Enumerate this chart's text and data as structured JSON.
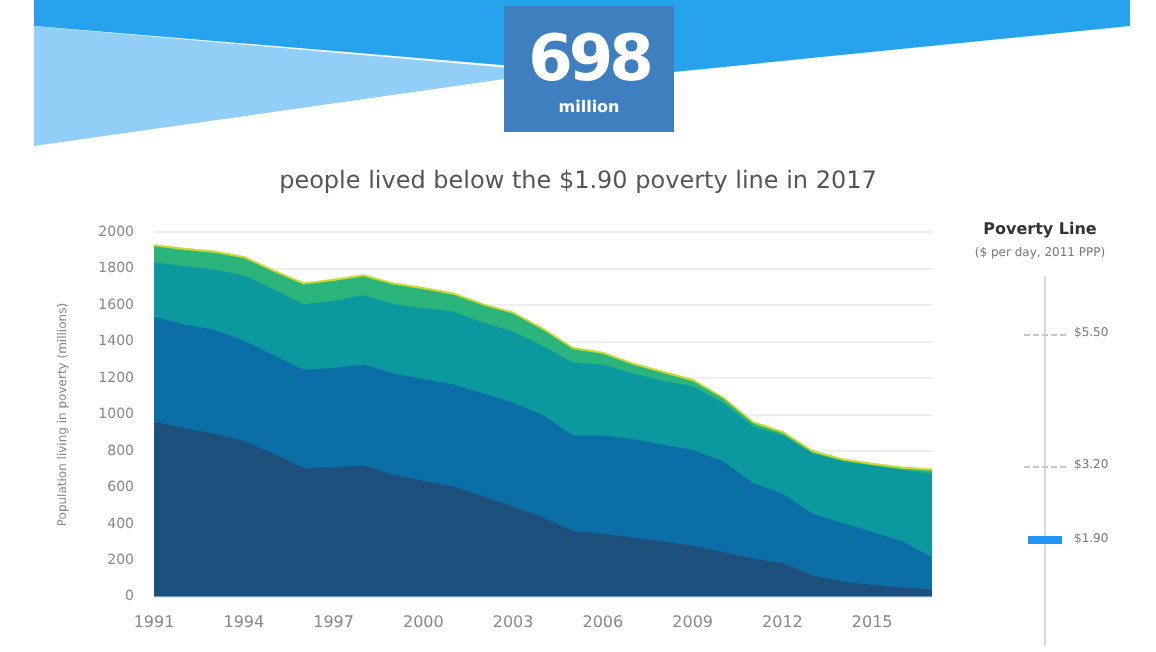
{
  "chart_data": {
    "type": "area",
    "title": "people lived below the $1.90 poverty line in 2017",
    "ylabel": "Population living in poverty (millions)",
    "annotations": [
      "698",
      "million",
      "Poverty Line",
      "($ per day, 2011 PPP)",
      "$5.50",
      "$3.20",
      "$1.90"
    ],
    "x": [
      1991,
      1992,
      1993,
      1994,
      1995,
      1996,
      1997,
      1998,
      1999,
      2000,
      2001,
      2002,
      2003,
      2004,
      2005,
      2006,
      2007,
      2008,
      2009,
      2010,
      2011,
      2012,
      2013,
      2014,
      2015,
      2016,
      2017
    ],
    "stacked": true,
    "series": [
      {
        "color": "#1d4f7c",
        "values": [
          955,
          920,
          890,
          850,
          780,
          700,
          705,
          715,
          665,
          630,
          600,
          545,
          490,
          430,
          355,
          340,
          320,
          300,
          275,
          240,
          205,
          180,
          110,
          80,
          60,
          45,
          35
        ]
      },
      {
        "color": "#0b6ea6",
        "values": [
          575,
          570,
          570,
          550,
          540,
          540,
          545,
          555,
          555,
          560,
          560,
          565,
          570,
          560,
          525,
          540,
          540,
          530,
          525,
          500,
          415,
          380,
          340,
          320,
          290,
          255,
          175
        ]
      },
      {
        "color": "#0b999f",
        "values": [
          300,
          320,
          330,
          360,
          360,
          360,
          370,
          380,
          380,
          390,
          400,
          390,
          390,
          380,
          400,
          390,
          360,
          350,
          350,
          320,
          310,
          320,
          330,
          340,
          365,
          390,
          460
        ]
      },
      {
        "color": "#2bb47c",
        "values": [
          88,
          88,
          93,
          93,
          98,
          108,
          108,
          103,
          108,
          103,
          93,
          93,
          98,
          88,
          73,
          58,
          48,
          43,
          28,
          23,
          18,
          13,
          8,
          3,
          3,
          8,
          16
        ]
      },
      {
        "color": "#c9d934",
        "values": [
          12,
          12,
          12,
          12,
          12,
          12,
          12,
          12,
          12,
          12,
          12,
          12,
          12,
          12,
          12,
          12,
          12,
          12,
          12,
          12,
          12,
          12,
          12,
          12,
          12,
          12,
          12
        ]
      }
    ],
    "xlim": [
      1991,
      2017
    ],
    "xticks": [
      1991,
      1994,
      1997,
      2000,
      2003,
      2006,
      2009,
      2012,
      2015
    ],
    "ylim": [
      0,
      2000
    ],
    "yticks": [
      0,
      200,
      400,
      600,
      800,
      1000,
      1200,
      1400,
      1600,
      1800,
      2000
    ],
    "grid": "y",
    "legend": false,
    "marker": "none"
  }
}
